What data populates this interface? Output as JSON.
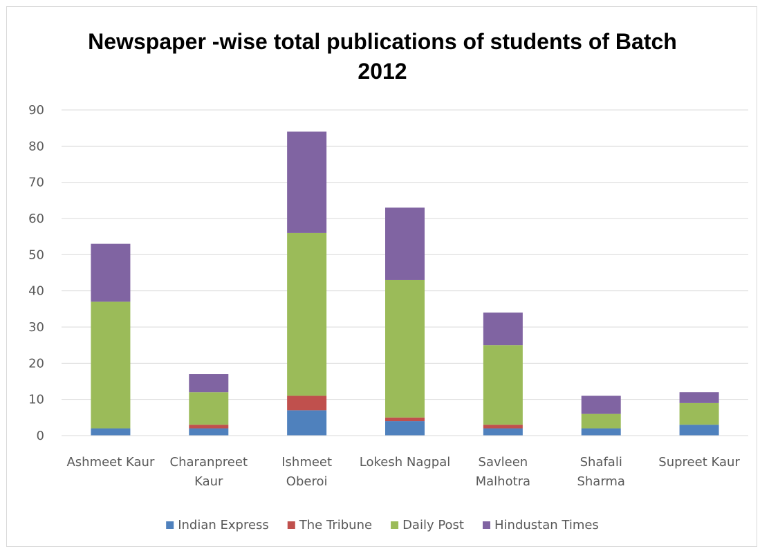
{
  "chart_data": {
    "type": "bar",
    "stacked": true,
    "title": "Newspaper -wise total publications of students of Batch 2012",
    "title_lines": [
      "Newspaper -wise total publications of students of Batch",
      "2012"
    ],
    "categories": [
      [
        "Ashmeet Kaur"
      ],
      [
        "Charanpreet",
        "Kaur"
      ],
      [
        "Ishmeet",
        "Oberoi"
      ],
      [
        "Lokesh Nagpal"
      ],
      [
        "Savleen",
        "Malhotra"
      ],
      [
        "Shafali",
        "Sharma"
      ],
      [
        "Supreet Kaur"
      ]
    ],
    "series": [
      {
        "name": "Indian Express",
        "color": "#4f81bd",
        "values": [
          2,
          2,
          7,
          4,
          2,
          2,
          3
        ]
      },
      {
        "name": "The Tribune",
        "color": "#c0504d",
        "values": [
          0,
          1,
          4,
          1,
          1,
          0,
          0
        ]
      },
      {
        "name": "Daily Post",
        "color": "#9bbb59",
        "values": [
          35,
          9,
          45,
          38,
          22,
          4,
          6
        ]
      },
      {
        "name": "Hindustan Times",
        "color": "#8064a2",
        "values": [
          16,
          5,
          28,
          20,
          9,
          5,
          3
        ]
      }
    ],
    "ylim": [
      0,
      90
    ],
    "yticks": [
      0,
      10,
      20,
      30,
      40,
      50,
      60,
      70,
      80,
      90
    ],
    "xlabel": "",
    "ylabel": "",
    "grid": true,
    "legend_position": "bottom"
  }
}
